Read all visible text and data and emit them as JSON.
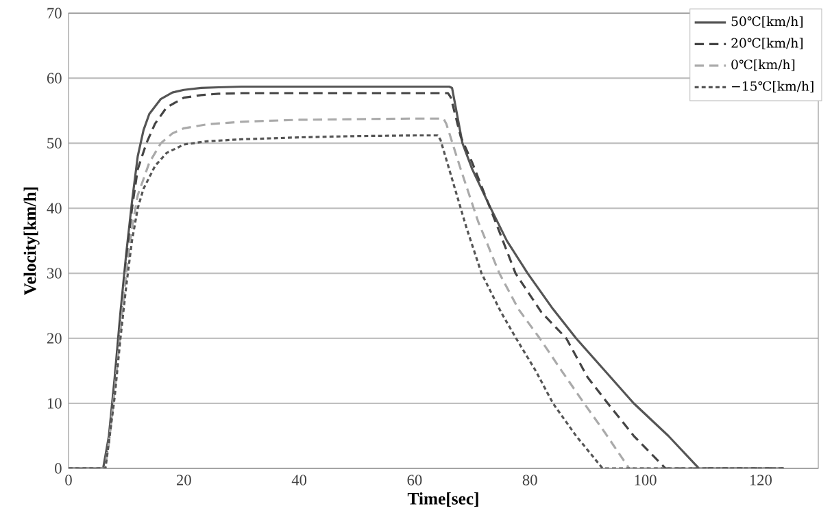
{
  "chart_data": {
    "type": "line",
    "xlabel": "Time[sec]",
    "ylabel": "Velocity[km/h]",
    "xlim": [
      0,
      130
    ],
    "ylim": [
      0,
      70
    ],
    "xticks": [
      0,
      20,
      40,
      60,
      80,
      100,
      120
    ],
    "yticks": [
      0,
      10,
      20,
      30,
      40,
      50,
      60,
      70
    ],
    "grid": "y",
    "legend": "top right",
    "marker": "none",
    "series": [
      {
        "name": "50℃[km/h]",
        "color": "#555555",
        "line_style": "solid",
        "x": [
          0,
          6,
          7,
          8,
          9,
          10,
          11,
          12,
          13,
          14,
          16,
          18,
          20,
          23,
          26,
          30,
          40,
          50,
          60,
          66,
          66.5,
          68.3,
          70,
          73.2,
          76,
          79.6,
          84,
          88,
          93,
          98,
          104,
          109.3,
          124
        ],
        "values": [
          0,
          0,
          5,
          14,
          24,
          33,
          41,
          48,
          52,
          54.5,
          56.8,
          57.8,
          58.2,
          58.5,
          58.6,
          58.7,
          58.7,
          58.7,
          58.7,
          58.7,
          58.5,
          50,
          46,
          40,
          35,
          30,
          24.5,
          20,
          15,
          10,
          5,
          0,
          0
        ]
      },
      {
        "name": "20℃[km/h]",
        "color": "#444444",
        "line_style": "dashed",
        "x": [
          0,
          6.2,
          7,
          8,
          9,
          10,
          11,
          12,
          13.5,
          15,
          17,
          20,
          23,
          26,
          30,
          40,
          50,
          60,
          65.8,
          66.3,
          68,
          70,
          74,
          77.5,
          82,
          86.3,
          90,
          93.5,
          98,
          103.5,
          124
        ],
        "values": [
          0,
          0,
          4,
          13,
          23,
          32,
          40,
          46,
          50,
          53,
          55.5,
          57,
          57.4,
          57.6,
          57.7,
          57.7,
          57.7,
          57.7,
          57.7,
          57,
          51,
          47,
          38,
          30,
          24,
          20,
          14,
          10,
          5,
          0,
          0
        ]
      },
      {
        "name": "0℃[km/h]",
        "color": "#aaaaaa",
        "line_style": "dashed",
        "x": [
          0,
          6.3,
          7,
          8,
          9,
          10,
          11,
          12,
          14,
          16,
          18,
          20,
          24,
          30,
          40,
          50,
          60,
          65,
          65.5,
          68,
          71,
          74.7,
          78,
          81.7,
          85.5,
          89.4,
          93,
          97.2,
          124
        ],
        "values": [
          0,
          0,
          4,
          12,
          21,
          30,
          37,
          42,
          47,
          50,
          51.5,
          52.3,
          52.9,
          53.3,
          53.6,
          53.7,
          53.8,
          53.8,
          53,
          46,
          38,
          30,
          24.5,
          20,
          15,
          10,
          5.5,
          0,
          0
        ]
      },
      {
        "name": "−15℃[km/h]",
        "color": "#555555",
        "line_style": "dotted",
        "x": [
          0,
          6.4,
          7,
          8,
          9,
          10,
          11,
          12,
          13,
          15,
          17,
          20,
          24,
          30,
          40,
          50,
          60,
          64,
          64.5,
          67,
          69,
          71.6,
          75,
          77.6,
          81,
          84,
          88,
          92.6,
          124
        ],
        "values": [
          0,
          0,
          4,
          11,
          20,
          28,
          35,
          40,
          43,
          46.5,
          48.5,
          49.8,
          50.3,
          50.6,
          50.9,
          51.1,
          51.2,
          51.2,
          50.5,
          43,
          37,
          30,
          24,
          20,
          15,
          10,
          5,
          0,
          0
        ]
      }
    ]
  }
}
